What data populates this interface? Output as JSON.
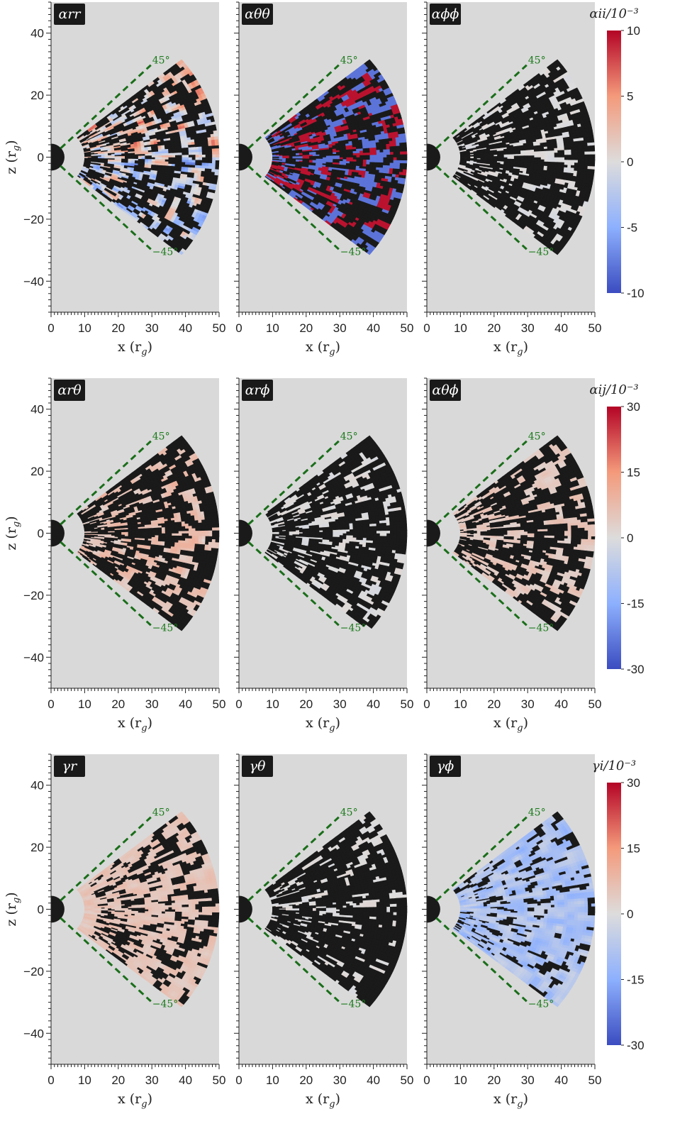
{
  "chart_data": {
    "type": "heatmap",
    "x_tick_labels": [
      "0",
      "10",
      "20",
      "30",
      "40",
      "50"
    ],
    "z_tick_labels": [
      "40",
      "20",
      "0",
      "−20",
      "−40"
    ],
    "x_ticks": [
      0,
      10,
      20,
      30,
      40,
      50
    ],
    "z_ticks": [
      40,
      20,
      0,
      -20,
      -40
    ],
    "xlabel": "x (r",
    "xlabel_sub": "g",
    "ylabel": "z (r",
    "ylabel_sub": "g",
    "xlim": [
      0,
      50
    ],
    "zlim": [
      -50,
      50
    ],
    "inner_radius": 10,
    "outer_radius": 50,
    "wedge_angle_deg": 78,
    "reference_angles": [
      "45°",
      "−45°"
    ],
    "rows": [
      {
        "colorbar_title": "αii/10⁻³",
        "colorbar_ticks": [
          "10",
          "5",
          "0",
          "-5",
          "-10"
        ],
        "vmin": -10,
        "vmax": 10,
        "panels": [
          {
            "label": "αrr",
            "pattern": "rr"
          },
          {
            "label": "αθθ",
            "pattern": "tt"
          },
          {
            "label": "αϕϕ",
            "pattern": "pp"
          }
        ]
      },
      {
        "colorbar_title": "αij/10⁻³",
        "colorbar_ticks": [
          "30",
          "15",
          "0",
          "-15",
          "-30"
        ],
        "vmin": -30,
        "vmax": 30,
        "panels": [
          {
            "label": "αrθ",
            "pattern": "rt"
          },
          {
            "label": "αrϕ",
            "pattern": "rp"
          },
          {
            "label": "αθϕ",
            "pattern": "tp"
          }
        ]
      },
      {
        "colorbar_title": "γi/10⁻³",
        "colorbar_ticks": [
          "30",
          "15",
          "0",
          "-15",
          "-30"
        ],
        "vmin": -30,
        "vmax": 30,
        "panels": [
          {
            "label": "γr",
            "pattern": "gr"
          },
          {
            "label": "γθ",
            "pattern": "gt"
          },
          {
            "label": "γϕ",
            "pattern": "gp"
          }
        ]
      }
    ]
  },
  "colors": {
    "background": "#d9d9d9",
    "masked": "#1a1a1a",
    "reference_line": "#1a6e1a",
    "cmap_low": "#3b4cc0",
    "cmap_mid": "#dddcdc",
    "cmap_high": "#b40426"
  }
}
